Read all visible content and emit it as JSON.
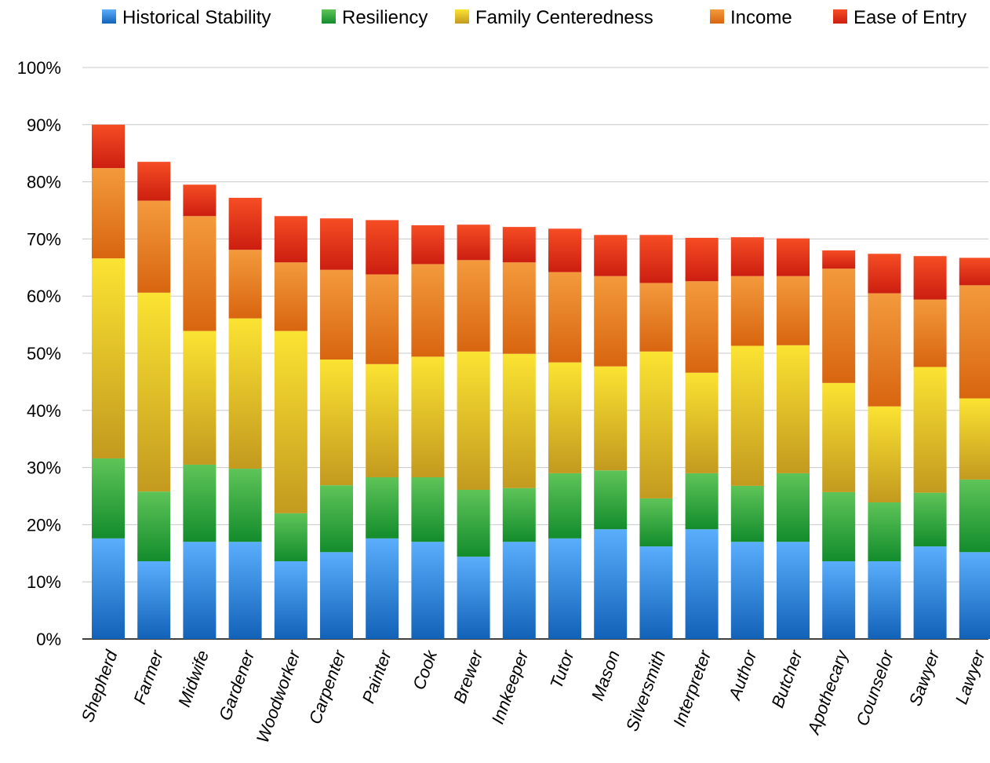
{
  "chart_data": {
    "type": "bar",
    "stacked": true,
    "title": "",
    "xlabel": "",
    "ylabel": "",
    "ylim": [
      0,
      100
    ],
    "y_ticks": [
      "0%",
      "10%",
      "20%",
      "30%",
      "40%",
      "50%",
      "60%",
      "70%",
      "80%",
      "90%",
      "100%"
    ],
    "grid": true,
    "legend_position": "top",
    "categories": [
      "Shepherd",
      "Farmer",
      "Midwife",
      "Gardener",
      "Woodworker",
      "Carpenter",
      "Painter",
      "Cook",
      "Brewer",
      "Innkeeper",
      "Tutor",
      "Mason",
      "Silversmith",
      "Interpreter",
      "Author",
      "Butcher",
      "Apothecary",
      "Counselor",
      "Sawyer",
      "Lawyer"
    ],
    "series": [
      {
        "name": "Historical Stability",
        "color_top": "#5aaefc",
        "color_bottom": "#1262b8",
        "values": [
          17.6,
          13.6,
          17.0,
          17.0,
          13.6,
          15.2,
          17.6,
          17.0,
          14.4,
          17.0,
          17.6,
          19.2,
          16.2,
          19.2,
          17.0,
          17.0,
          13.6,
          13.6,
          16.2,
          15.2
        ]
      },
      {
        "name": "Resiliency",
        "color_top": "#5ec458",
        "color_bottom": "#138c2c",
        "values": [
          14.0,
          12.2,
          13.5,
          12.8,
          8.4,
          11.7,
          10.7,
          11.3,
          11.7,
          9.4,
          11.4,
          10.3,
          8.4,
          9.8,
          9.8,
          12.0,
          12.1,
          10.3,
          9.4,
          12.7
        ]
      },
      {
        "name": "Family Centeredness",
        "color_top": "#fbe332",
        "color_bottom": "#c39a1f",
        "values": [
          35.0,
          34.8,
          23.4,
          26.3,
          31.9,
          22.0,
          19.8,
          21.1,
          24.2,
          23.5,
          19.4,
          18.2,
          25.7,
          17.6,
          24.5,
          22.4,
          19.1,
          16.8,
          22.0,
          14.2
        ]
      },
      {
        "name": "Income",
        "color_top": "#f39a3c",
        "color_bottom": "#d8650f",
        "values": [
          15.8,
          16.1,
          20.1,
          12.0,
          12.0,
          15.7,
          15.7,
          16.2,
          16.0,
          16.0,
          15.8,
          15.8,
          12.0,
          16.0,
          12.2,
          12.1,
          20.0,
          19.8,
          11.8,
          19.8
        ]
      },
      {
        "name": "Ease of Entry",
        "color_top": "#f54d24",
        "color_bottom": "#cc1e10",
        "values": [
          7.6,
          6.8,
          5.5,
          9.1,
          8.1,
          9.0,
          9.5,
          6.8,
          6.2,
          6.2,
          7.6,
          7.2,
          8.4,
          7.6,
          6.8,
          6.6,
          3.2,
          6.9,
          7.6,
          4.8
        ]
      }
    ]
  }
}
